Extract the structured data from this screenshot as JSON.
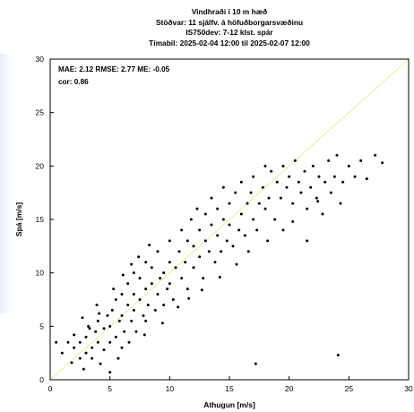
{
  "chart_data": {
    "type": "scatter",
    "title_lines": [
      "Vindhraði í 10 m hæð",
      "Stöðvar: 11 sjálfv. á höfuðborgarsvæðinu",
      "IS750dev:  7-12 klst. spár",
      "Tímabil: 2025-02-04 12:00 til 2025-02-07 12:00"
    ],
    "xlabel": "Athugun   [m/s]",
    "ylabel": "Spá   [m/s]",
    "xlim": [
      0,
      30
    ],
    "ylim": [
      0,
      30
    ],
    "xticks": [
      "0",
      "5",
      "10",
      "15",
      "20",
      "25",
      "30"
    ],
    "yticks": [
      "0",
      "5",
      "10",
      "15",
      "20",
      "25",
      "30"
    ],
    "stats_line1": "MAE: 2.12 RMSE: 2.77 ME: -0.05",
    "stats_line2": "cor: 0.86",
    "reference_line": {
      "from": [
        0,
        0
      ],
      "to": [
        30,
        30
      ],
      "color": "#ecec9c"
    },
    "point_color": "#000000",
    "grid": false,
    "points": [
      [
        0.5,
        3.5
      ],
      [
        1.0,
        2.5
      ],
      [
        1.5,
        3.5
      ],
      [
        2.0,
        3.0
      ],
      [
        2.0,
        4.2
      ],
      [
        2.5,
        2.0
      ],
      [
        2.5,
        3.5
      ],
      [
        2.8,
        1.0
      ],
      [
        3.0,
        2.5
      ],
      [
        3.0,
        4.0
      ],
      [
        3.2,
        5.0
      ],
      [
        3.5,
        3.0
      ],
      [
        3.5,
        2.0
      ],
      [
        3.8,
        4.5
      ],
      [
        4.0,
        3.5
      ],
      [
        4.0,
        5.5
      ],
      [
        4.2,
        1.5
      ],
      [
        4.5,
        2.8
      ],
      [
        4.5,
        4.8
      ],
      [
        4.8,
        6.0
      ],
      [
        5.0,
        0.7
      ],
      [
        5.0,
        3.5
      ],
      [
        5.0,
        5.0
      ],
      [
        5.2,
        6.5
      ],
      [
        5.5,
        4.0
      ],
      [
        5.5,
        7.5
      ],
      [
        5.8,
        5.5
      ],
      [
        6.0,
        3.0
      ],
      [
        6.0,
        6.0
      ],
      [
        6.0,
        8.0
      ],
      [
        6.2,
        4.5
      ],
      [
        6.5,
        7.0
      ],
      [
        6.5,
        9.0
      ],
      [
        6.8,
        5.5
      ],
      [
        7.0,
        6.5
      ],
      [
        7.0,
        8.0
      ],
      [
        7.0,
        10.0
      ],
      [
        7.2,
        4.5
      ],
      [
        7.5,
        7.5
      ],
      [
        7.5,
        9.5
      ],
      [
        7.8,
        6.0
      ],
      [
        8.0,
        8.5
      ],
      [
        8.0,
        11.0
      ],
      [
        8.0,
        5.5
      ],
      [
        8.2,
        7.0
      ],
      [
        8.5,
        9.0
      ],
      [
        8.5,
        10.5
      ],
      [
        8.8,
        6.5
      ],
      [
        9.0,
        8.0
      ],
      [
        9.0,
        12.0
      ],
      [
        9.2,
        9.5
      ],
      [
        9.5,
        7.0
      ],
      [
        9.5,
        10.0
      ],
      [
        9.8,
        8.5
      ],
      [
        10.0,
        11.0
      ],
      [
        10.0,
        9.0
      ],
      [
        10.0,
        13.0
      ],
      [
        10.3,
        7.5
      ],
      [
        10.5,
        10.5
      ],
      [
        10.8,
        12.0
      ],
      [
        11.0,
        9.5
      ],
      [
        11.0,
        14.0
      ],
      [
        11.3,
        11.0
      ],
      [
        11.5,
        8.5
      ],
      [
        11.5,
        13.0
      ],
      [
        11.8,
        15.0
      ],
      [
        12.0,
        10.5
      ],
      [
        12.0,
        12.5
      ],
      [
        12.3,
        16.0
      ],
      [
        12.5,
        11.5
      ],
      [
        12.5,
        14.0
      ],
      [
        12.8,
        9.5
      ],
      [
        13.0,
        13.0
      ],
      [
        13.0,
        15.5
      ],
      [
        13.3,
        12.0
      ],
      [
        13.5,
        17.0
      ],
      [
        13.5,
        14.5
      ],
      [
        13.8,
        11.0
      ],
      [
        14.0,
        13.5
      ],
      [
        14.0,
        16.0
      ],
      [
        14.3,
        12.0
      ],
      [
        14.5,
        15.0
      ],
      [
        14.5,
        18.0
      ],
      [
        14.8,
        13.0
      ],
      [
        15.0,
        14.5
      ],
      [
        15.0,
        16.5
      ],
      [
        15.3,
        12.5
      ],
      [
        15.5,
        17.5
      ],
      [
        15.8,
        14.0
      ],
      [
        16.0,
        15.5
      ],
      [
        16.0,
        18.5
      ],
      [
        16.3,
        13.5
      ],
      [
        16.5,
        16.5
      ],
      [
        16.8,
        17.5
      ],
      [
        17.0,
        15.0
      ],
      [
        17.0,
        19.0
      ],
      [
        17.3,
        14.0
      ],
      [
        17.5,
        16.5
      ],
      [
        17.8,
        18.0
      ],
      [
        18.0,
        20.0
      ],
      [
        18.0,
        16.0
      ],
      [
        18.3,
        17.0
      ],
      [
        18.5,
        19.5
      ],
      [
        18.8,
        15.0
      ],
      [
        19.0,
        18.5
      ],
      [
        19.3,
        17.0
      ],
      [
        19.5,
        20.0
      ],
      [
        19.8,
        18.0
      ],
      [
        20.0,
        19.0
      ],
      [
        20.3,
        16.5
      ],
      [
        20.5,
        20.5
      ],
      [
        20.8,
        18.5
      ],
      [
        21.0,
        17.5
      ],
      [
        21.3,
        19.5
      ],
      [
        21.5,
        16.0
      ],
      [
        21.8,
        18.0
      ],
      [
        22.0,
        20.0
      ],
      [
        22.3,
        17.0
      ],
      [
        22.5,
        19.0
      ],
      [
        22.8,
        15.5
      ],
      [
        23.0,
        18.5
      ],
      [
        23.3,
        20.5
      ],
      [
        23.5,
        17.5
      ],
      [
        23.8,
        19.0
      ],
      [
        24.0,
        21.0
      ],
      [
        24.3,
        16.5
      ],
      [
        24.5,
        18.5
      ],
      [
        25.0,
        20.0
      ],
      [
        25.5,
        19.0
      ],
      [
        26.0,
        20.5
      ],
      [
        26.5,
        18.8
      ],
      [
        27.2,
        21.0
      ],
      [
        27.8,
        20.3
      ],
      [
        18.2,
        13.0
      ],
      [
        21.5,
        13.0
      ],
      [
        17.2,
        1.5
      ],
      [
        24.1,
        2.3
      ],
      [
        3.3,
        4.8
      ],
      [
        4.1,
        6.2
      ],
      [
        5.3,
        8.5
      ],
      [
        6.1,
        9.8
      ],
      [
        6.8,
        10.8
      ],
      [
        7.4,
        11.5
      ],
      [
        8.3,
        12.6
      ],
      [
        2.7,
        5.8
      ],
      [
        3.9,
        7.0
      ],
      [
        5.7,
        2.0
      ],
      [
        6.6,
        3.5
      ],
      [
        7.9,
        4.2
      ],
      [
        9.4,
        5.3
      ],
      [
        10.7,
        6.8
      ],
      [
        11.6,
        7.6
      ],
      [
        12.7,
        8.4
      ],
      [
        14.2,
        9.6
      ],
      [
        15.6,
        10.8
      ],
      [
        16.6,
        12.0
      ],
      [
        19.5,
        14.0
      ],
      [
        20.3,
        14.8
      ],
      [
        22.4,
        16.7
      ],
      [
        1.8,
        1.6
      ]
    ]
  }
}
